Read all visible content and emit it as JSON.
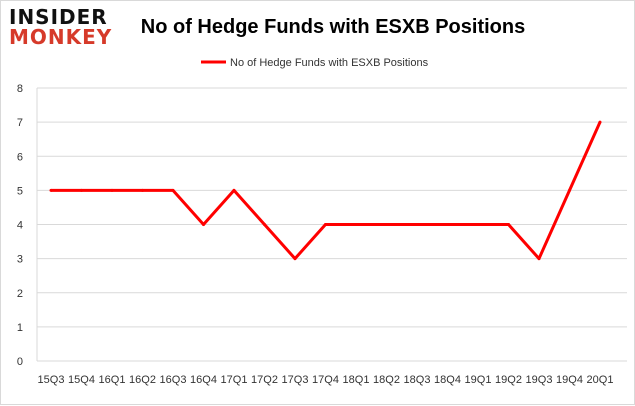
{
  "logo": {
    "line1": "INSIDER",
    "line2": "MONKEY"
  },
  "chart_data": {
    "type": "line",
    "title": "No of Hedge Funds with ESXB Positions",
    "xlabel": "",
    "ylabel": "",
    "categories": [
      "15Q3",
      "15Q4",
      "16Q1",
      "16Q2",
      "16Q3",
      "16Q4",
      "17Q1",
      "17Q2",
      "17Q3",
      "17Q4",
      "18Q1",
      "18Q2",
      "18Q3",
      "18Q4",
      "19Q1",
      "19Q2",
      "19Q3",
      "19Q4",
      "20Q1"
    ],
    "series": [
      {
        "name": "No of Hedge Funds with ESXB Positions",
        "color": "#ff0000",
        "values": [
          5,
          5,
          5,
          5,
          5,
          4,
          5,
          4,
          3,
          4,
          4,
          4,
          4,
          4,
          4,
          4,
          3,
          5,
          7
        ]
      }
    ],
    "ylim": [
      0,
      8
    ],
    "yticks": [
      0,
      1,
      2,
      3,
      4,
      5,
      6,
      7,
      8
    ],
    "grid": true,
    "legend": "top-center"
  }
}
